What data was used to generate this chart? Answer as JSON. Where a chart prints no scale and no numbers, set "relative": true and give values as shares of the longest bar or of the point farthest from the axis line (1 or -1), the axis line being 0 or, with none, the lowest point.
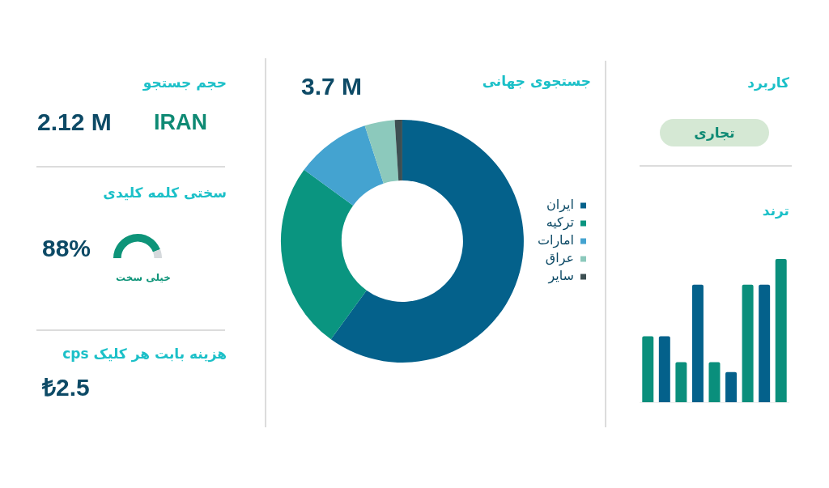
{
  "chart_data": [
    {
      "type": "other",
      "title": "حجم جستجو",
      "annotations": [
        "2.12 M",
        "IRAN"
      ]
    },
    {
      "type": "donut",
      "title": "سختی کلمه کلیدی",
      "categories": [
        null,
        null
      ],
      "values": [
        88,
        12
      ],
      "colors": [
        "#0e9479",
        "#d5d9dc"
      ],
      "value_labels": [
        "88%",
        null
      ],
      "annotations": [
        "خیلی سخت"
      ]
    },
    {
      "type": "other",
      "title": "هزینه بابت هر کلیک cps",
      "annotations": [
        "₺2.5"
      ]
    },
    {
      "type": "donut",
      "title": "جستجوی جهانی",
      "annotations": [
        "3.7 M"
      ],
      "legend": "right",
      "categories": [
        "ایران",
        "ترکیه",
        "امارات",
        "عراق",
        "سایر"
      ],
      "values": [
        60,
        25,
        10,
        4,
        1
      ],
      "colors": [
        "#04618b",
        "#0a9580",
        "#44a3d0",
        "#8cc9bc",
        "#3d4f52"
      ]
    },
    {
      "type": "other",
      "title": "کاربرد",
      "annotations": [
        "تجاری"
      ]
    },
    {
      "type": "bar",
      "title": "ترند",
      "relative": true,
      "categories": [
        null,
        null,
        null,
        null,
        null,
        null,
        null,
        null,
        null
      ],
      "values": [
        0.46,
        0.46,
        0.28,
        0.82,
        0.28,
        0.21,
        0.82,
        0.82,
        1
      ],
      "colors": [
        "#0a8f7c",
        "#04618b",
        "#0a8f7c",
        "#04618b",
        "#0a8f7c",
        "#04618b",
        "#0a8f7c",
        "#04618b",
        "#0a8f7c"
      ]
    }
  ]
}
